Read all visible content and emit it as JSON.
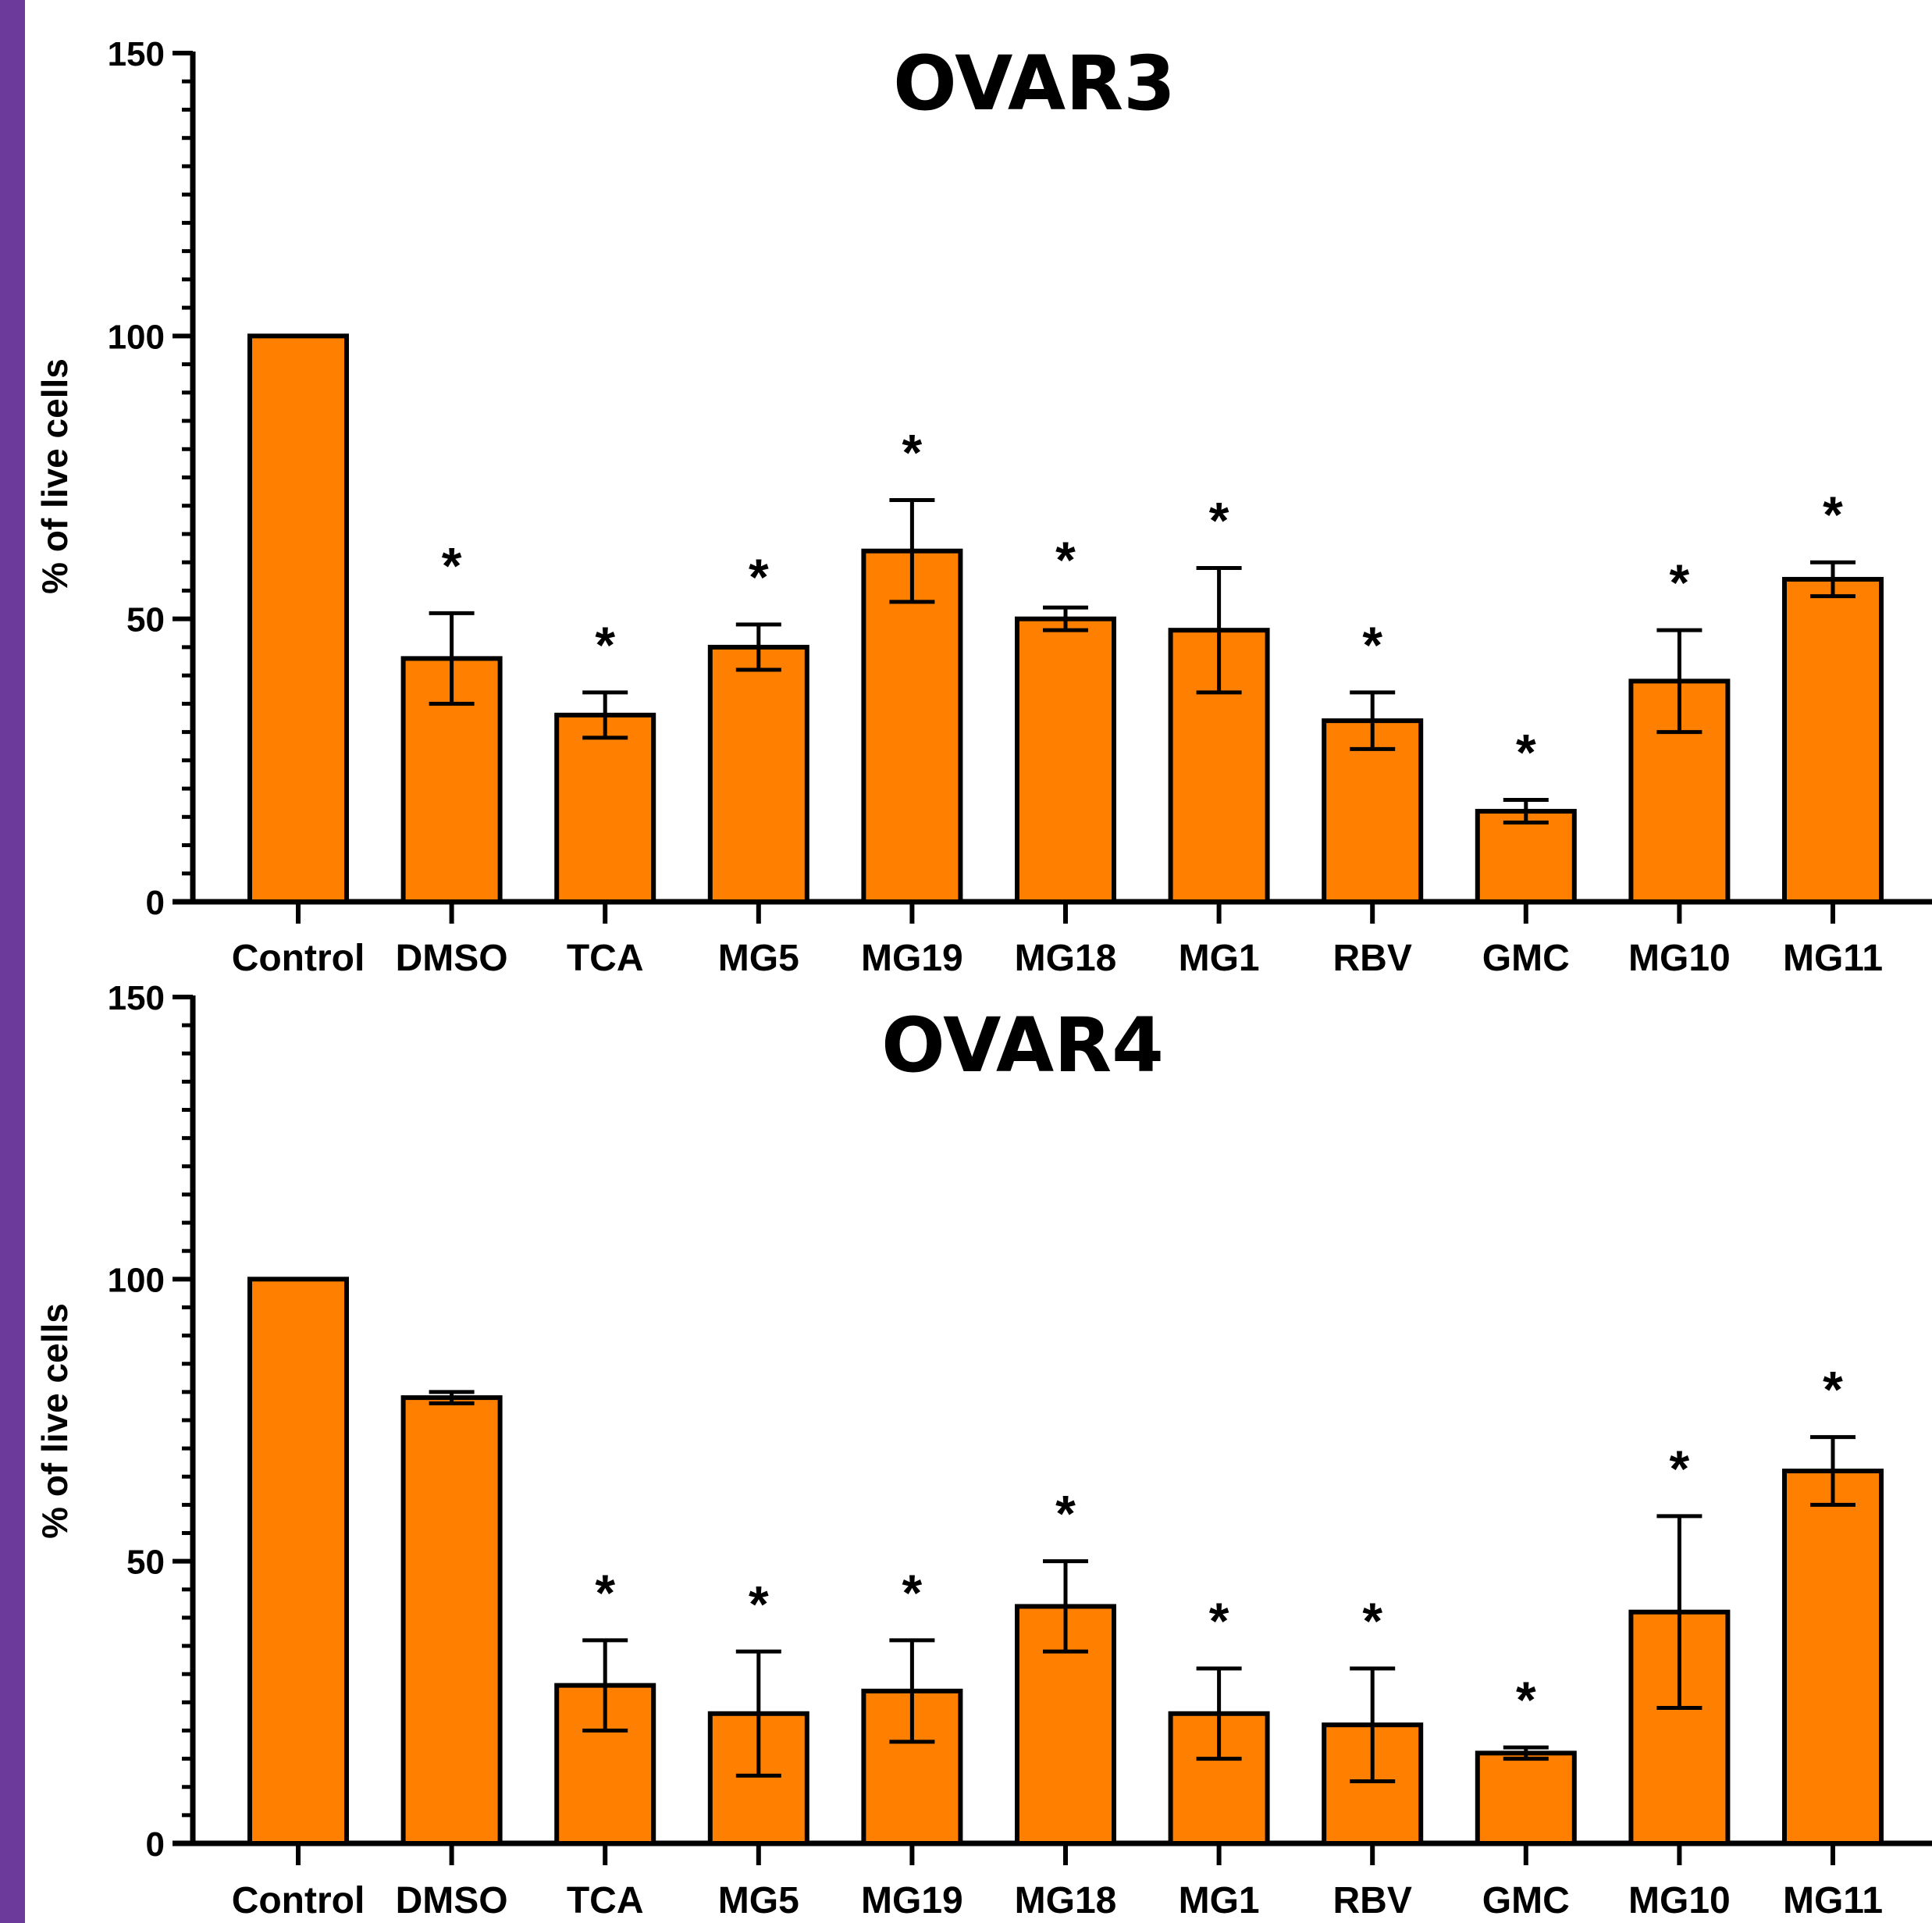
{
  "chart_data": [
    {
      "type": "bar",
      "title": "OVAR3",
      "ylabel": "% of live cells",
      "xlabel": "",
      "ylim": [
        0,
        150
      ],
      "yticks": [
        "0",
        "50",
        "100",
        "150"
      ],
      "categories": [
        "Control",
        "DMSO",
        "TCA",
        "MG5",
        "MG19",
        "MG18",
        "MG1",
        "RBV",
        "GMC",
        "MG10",
        "MG11"
      ],
      "values": [
        100,
        43,
        33,
        45,
        62,
        50,
        48,
        32,
        16,
        39,
        57
      ],
      "errors": [
        0,
        8,
        4,
        4,
        9,
        2,
        11,
        5,
        2,
        9,
        3
      ],
      "significance": [
        "",
        "*",
        "*",
        "*",
        "*",
        "*",
        "*",
        "*",
        "*",
        "*",
        "*"
      ],
      "bar_color": "#ff8000",
      "grid": false
    },
    {
      "type": "bar",
      "title": "OVAR4",
      "ylabel": "% of live cells",
      "xlabel": "",
      "ylim": [
        0,
        150
      ],
      "yticks": [
        "0",
        "50",
        "100",
        "150"
      ],
      "categories": [
        "Control",
        "DMSO",
        "TCA",
        "MG5",
        "MG19",
        "MG18",
        "MG1",
        "RBV",
        "GMC",
        "MG10",
        "MG11"
      ],
      "values": [
        100,
        79,
        28,
        23,
        27,
        42,
        23,
        21,
        16,
        41,
        66
      ],
      "errors": [
        0,
        1,
        8,
        11,
        9,
        8,
        8,
        10,
        1,
        17,
        6
      ],
      "significance": [
        "",
        "",
        "*",
        "*",
        "*",
        "*",
        "*",
        "*",
        "*",
        "*",
        "*"
      ],
      "bar_color": "#ff8000",
      "grid": false
    }
  ]
}
